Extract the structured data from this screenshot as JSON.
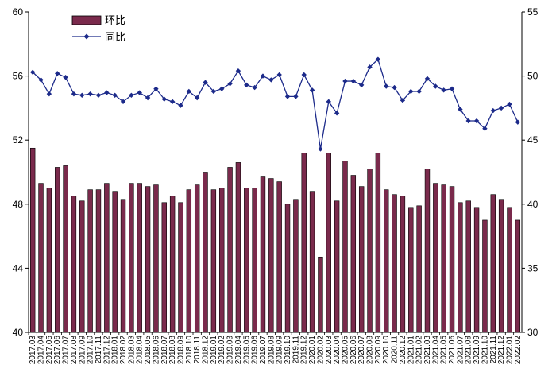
{
  "chart_data": {
    "type": "bar+line",
    "categories": [
      "2017.03",
      "2017.04",
      "2017.05",
      "2017.06",
      "2017.07",
      "2017.08",
      "2017.09",
      "2017.10",
      "2017.11",
      "2017.12",
      "2018.01",
      "2018.02",
      "2018.03",
      "2018.04",
      "2018.05",
      "2018.06",
      "2018.07",
      "2018.08",
      "2018.09",
      "2018.10",
      "2018.11",
      "2018.12",
      "2019.01",
      "2019.02",
      "2019.03",
      "2019.04",
      "2019.05",
      "2019.06",
      "2019.07",
      "2019.08",
      "2019.09",
      "2019.10",
      "2019.11",
      "2019.12",
      "2020.01",
      "2020.02",
      "2020.03",
      "2020.04",
      "2020.05",
      "2020.06",
      "2020.07",
      "2020.08",
      "2020.09",
      "2020.10",
      "2020.11",
      "2020.12",
      "2021.01",
      "2021.02",
      "2021.03",
      "2021.04",
      "2021.05",
      "2021.06",
      "2021.07",
      "2021.08",
      "2021.09",
      "2021.10",
      "2021.11",
      "2021.12",
      "2022.01",
      "2022.02"
    ],
    "series": [
      {
        "name": "环比",
        "axis": "left",
        "color": "#7a2a4c",
        "values": [
          51.5,
          49.3,
          49.0,
          50.3,
          50.4,
          48.5,
          48.2,
          48.9,
          48.9,
          49.3,
          48.8,
          48.3,
          49.3,
          49.3,
          49.1,
          49.2,
          48.1,
          48.5,
          48.1,
          48.9,
          49.2,
          50.0,
          48.9,
          49.0,
          50.3,
          50.6,
          49.0,
          49.0,
          49.7,
          49.6,
          49.4,
          48.0,
          48.3,
          51.2,
          48.8,
          44.7,
          51.2,
          48.2,
          50.7,
          49.8,
          49.1,
          50.2,
          51.2,
          48.9,
          48.6,
          48.5,
          47.8,
          47.9,
          50.2,
          49.3,
          49.2,
          49.1,
          48.1,
          48.2,
          47.8,
          47.0,
          48.6,
          48.3,
          47.8,
          47.0
        ]
      },
      {
        "name": "同比",
        "axis": "right",
        "color": "#1c2a8a",
        "values": [
          50.3,
          49.7,
          48.6,
          50.2,
          49.9,
          48.6,
          48.5,
          48.6,
          48.5,
          48.7,
          48.5,
          48.0,
          48.5,
          48.7,
          48.3,
          49.0,
          48.2,
          48.0,
          47.7,
          48.8,
          48.3,
          49.5,
          48.8,
          49.0,
          49.4,
          50.4,
          49.3,
          49.1,
          50.0,
          49.7,
          50.1,
          48.4,
          48.4,
          50.1,
          48.9,
          44.3,
          48.0,
          47.1,
          49.6,
          49.6,
          49.3,
          50.7,
          51.3,
          49.2,
          49.1,
          48.1,
          48.8,
          48.8,
          49.8,
          49.2,
          48.9,
          49.0,
          47.4,
          46.5,
          46.5,
          45.9,
          47.3,
          47.5,
          47.8,
          46.4
        ]
      }
    ],
    "y_left": {
      "min": 40,
      "max": 60,
      "ticks": [
        40,
        44,
        48,
        52,
        56,
        60
      ]
    },
    "y_right": {
      "min": 30,
      "max": 55,
      "ticks": [
        30,
        35,
        40,
        45,
        50,
        55
      ]
    },
    "legend_position": "top-left",
    "grid": false
  }
}
